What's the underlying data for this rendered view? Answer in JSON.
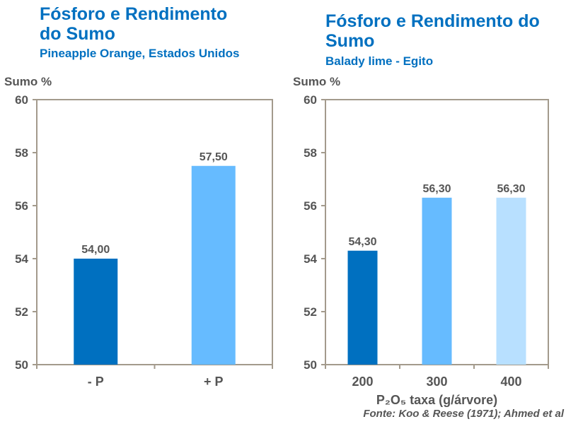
{
  "chart_data": [
    {
      "type": "bar",
      "title": "Fósforo e Rendimento do Sumo",
      "subtitle": "Pineapple Orange, Estados Unidos",
      "y_label": "Sumo %",
      "categories": [
        "- P",
        "+ P"
      ],
      "values": [
        54,
        57.5
      ],
      "value_labels": [
        "54,00",
        "57,50"
      ],
      "colors": [
        "#0070c0",
        "#66bbff"
      ],
      "ylim": [
        50,
        60
      ],
      "yticks": [
        50,
        52,
        54,
        56,
        58,
        60
      ]
    },
    {
      "type": "bar",
      "title": "Fósforo e Rendimento do Sumo",
      "subtitle": "Balady lime - Egito",
      "y_label": "Sumo %",
      "x_label": "P₂O₅ taxa (g/árvore)",
      "source": "Fonte: Koo & Reese (1971); Ahmed et al",
      "categories": [
        "200",
        "300",
        "400"
      ],
      "values": [
        54.3,
        56.3,
        56.3
      ],
      "value_labels": [
        "54,30",
        "56,30",
        "56,30"
      ],
      "colors": [
        "#0070c0",
        "#66bbff",
        "#b8e0ff"
      ],
      "ylim": [
        50,
        60
      ],
      "yticks": [
        50,
        52,
        54,
        56,
        58,
        60
      ]
    }
  ]
}
